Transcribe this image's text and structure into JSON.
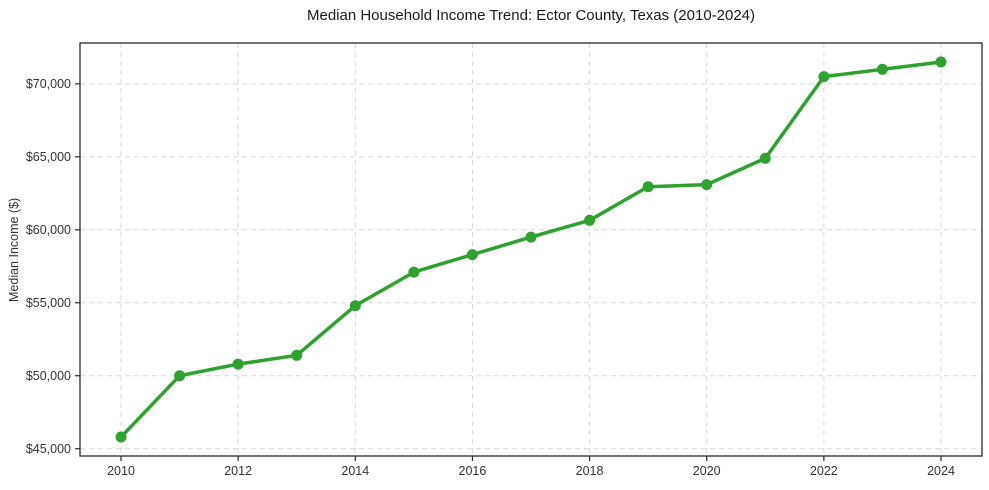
{
  "figure": {
    "background_color": "#ffffff"
  },
  "chart_data": {
    "type": "line",
    "title": "Median Household Income Trend: Ector County, Texas (2010-2024)",
    "xlabel": "",
    "ylabel": "Median Income ($)",
    "x": [
      2010,
      2011,
      2012,
      2013,
      2014,
      2015,
      2016,
      2017,
      2018,
      2019,
      2020,
      2021,
      2022,
      2023,
      2024
    ],
    "series": [
      {
        "name": "Median household income",
        "values": [
          45800,
          50000,
          50800,
          51400,
          54800,
          57100,
          58300,
          59500,
          60650,
          62950,
          63100,
          64900,
          70500,
          71000,
          71500
        ]
      }
    ],
    "xlim": [
      2009.3,
      2024.7
    ],
    "ylim": [
      44500,
      72800
    ],
    "xticks": [
      2010,
      2012,
      2014,
      2016,
      2018,
      2020,
      2022,
      2024
    ],
    "yticks": [
      45000,
      50000,
      55000,
      60000,
      65000,
      70000
    ],
    "ytick_labels": [
      "$45,000",
      "$50,000",
      "$55,000",
      "$60,000",
      "$65,000",
      "$70,000"
    ],
    "grid": true,
    "legend": false,
    "style": {
      "line_color": "#2ea12e",
      "marker": "circle",
      "marker_radius": 5.5,
      "line_width": 3.5,
      "grid_color": "#d8d8d8",
      "grid_dash": "5 4",
      "spine_color": "#2b2b2b",
      "tick_color": "#2b2b2b",
      "tick_label_color": "#333333",
      "title_color": "#1a1a1a"
    }
  }
}
